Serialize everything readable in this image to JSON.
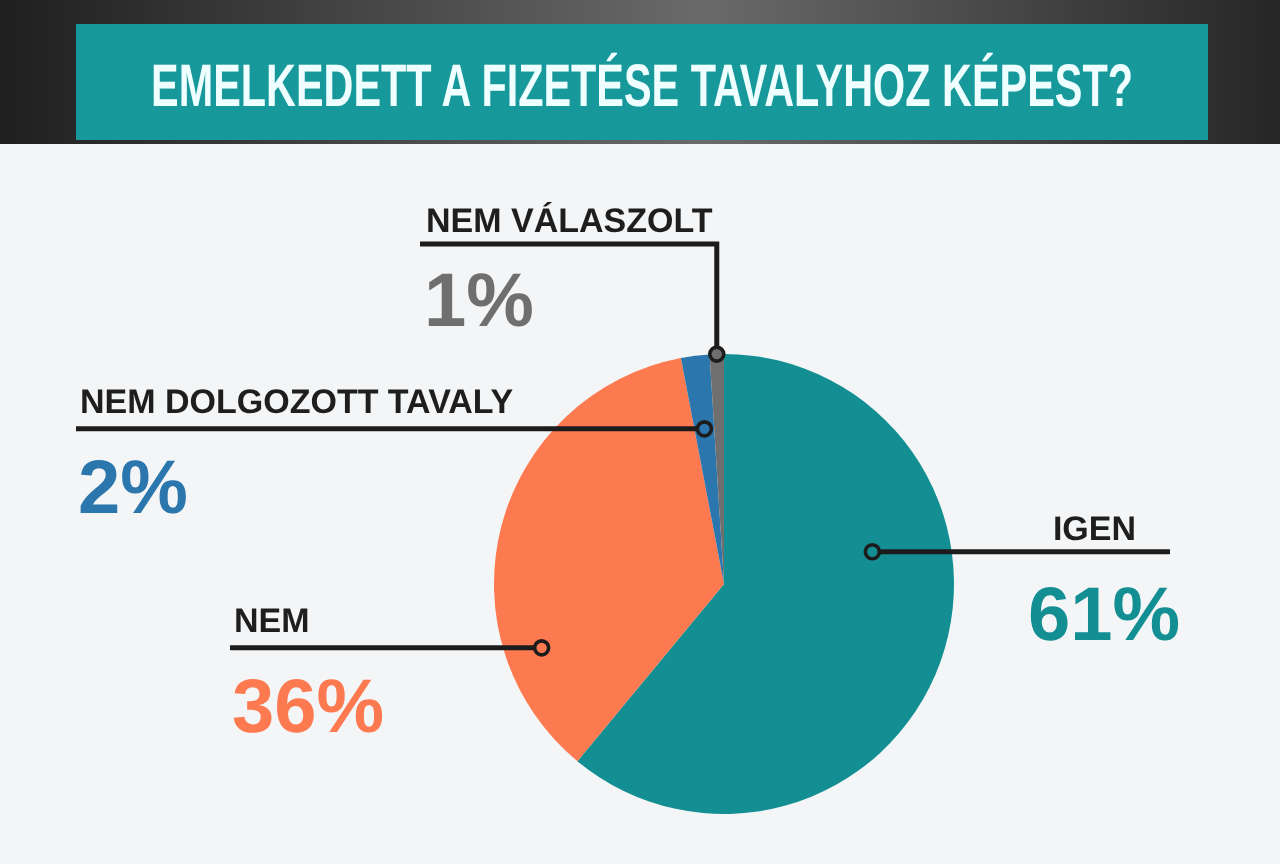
{
  "chart_data": {
    "type": "pie",
    "title": "EMELKEDETT A FIZETÉSE TAVALYHOZ KÉPEST?",
    "categories": [
      "IGEN",
      "NEM",
      "NEM DOLGOZOTT TAVALY",
      "NEM VÁLASZOLT"
    ],
    "values": [
      61,
      36,
      2,
      1
    ],
    "colors": [
      "#138e93",
      "#fd7a50",
      "#2a76ad",
      "#6f6f6f"
    ],
    "value_labels": [
      "61%",
      "36%",
      "2%",
      "1%"
    ]
  }
}
